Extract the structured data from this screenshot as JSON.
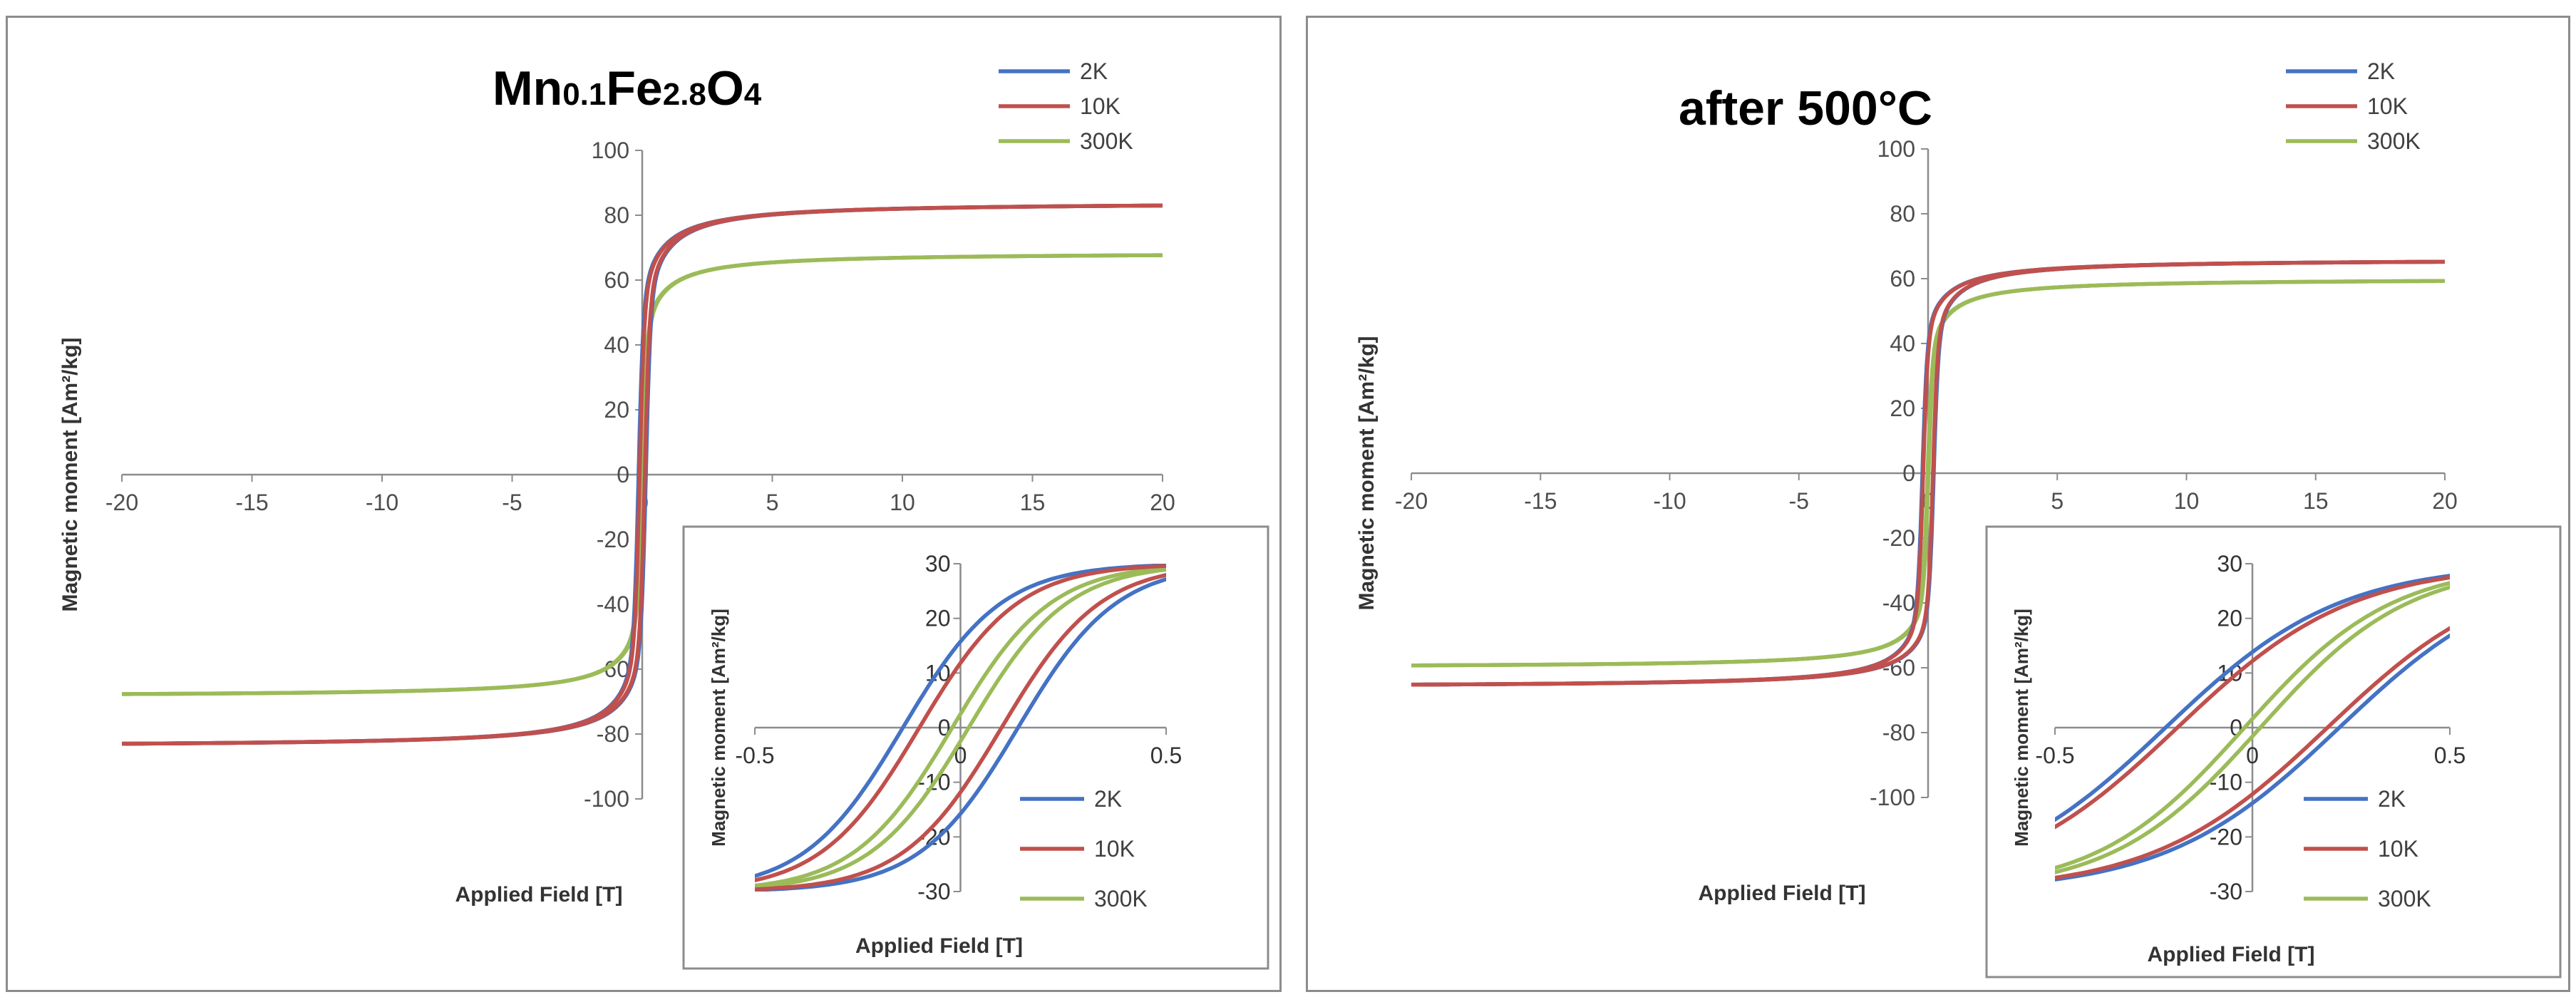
{
  "chart_data": [
    {
      "type": "line",
      "title_parts": [
        {
          "text": "Mn",
          "sub": false
        },
        {
          "text": "0.1",
          "sub": true
        },
        {
          "text": "Fe",
          "sub": false
        },
        {
          "text": "2.8",
          "sub": true
        },
        {
          "text": "O",
          "sub": false
        },
        {
          "text": "4",
          "sub": true
        }
      ],
      "xlabel": "Applied Field [T]",
      "ylabel": "Magnetic moment [Am²/kg]",
      "xlim": [
        -20,
        20
      ],
      "ylim": [
        -100,
        100
      ],
      "xticks": [
        -20,
        -15,
        -10,
        -5,
        0,
        5,
        10,
        15,
        20
      ],
      "xtick_labels": [
        "-20",
        "-15",
        "-10",
        "-5",
        "0",
        "5",
        "10",
        "15",
        "20"
      ],
      "yticks": [
        -100,
        -80,
        -60,
        -40,
        -20,
        0,
        20,
        40,
        60,
        80,
        100
      ],
      "ytick_labels": [
        "-100",
        "-80",
        "-60",
        "-40",
        "-20",
        "0",
        "20",
        "40",
        "60",
        "80",
        "100"
      ],
      "legend_position": "top-right",
      "series": [
        {
          "name": "2K",
          "color": "#4472c4",
          "Ms": 84,
          "Hc": 0.14
        },
        {
          "name": "10K",
          "color": "#c0504d",
          "Ms": 84,
          "Hc": 0.1
        },
        {
          "name": "300K",
          "color": "#9bbb59",
          "Ms": 68.5,
          "Hc": 0.02
        }
      ],
      "inset": {
        "xlabel": "Applied Field [T]",
        "ylabel": "Magnetic moment [Am²/kg]",
        "xlim": [
          -0.5,
          0.5
        ],
        "ylim": [
          -30,
          30
        ],
        "xticks": [
          -0.5,
          0,
          0.5
        ],
        "xtick_labels": [
          "-0.5",
          "0",
          "0.5"
        ],
        "yticks": [
          -30,
          -20,
          -10,
          0,
          10,
          20,
          30
        ],
        "ytick_labels": [
          "-30",
          "-20",
          "-10",
          "0",
          "10",
          "20",
          "30"
        ],
        "legend_position": "bottom-right",
        "series": [
          {
            "name": "2K",
            "color": "#4472c4",
            "Hc": 0.14,
            "slope": 125
          },
          {
            "name": "10K",
            "color": "#c0504d",
            "Hc": 0.1,
            "slope": 125
          },
          {
            "name": "300K",
            "color": "#9bbb59",
            "Hc": 0.02,
            "slope": 125
          }
        ]
      }
    },
    {
      "type": "line",
      "title_parts": [
        {
          "text": "after 500°C",
          "sub": false
        }
      ],
      "xlabel": "Applied Field [T]",
      "ylabel": "Magnetic moment [Am²/kg]",
      "xlim": [
        -20,
        20
      ],
      "ylim": [
        -100,
        100
      ],
      "xticks": [
        -20,
        -15,
        -10,
        -5,
        0,
        5,
        10,
        15,
        20
      ],
      "xtick_labels": [
        "-20",
        "-15",
        "-10",
        "-5",
        "0",
        "5",
        "10",
        "15",
        "20"
      ],
      "yticks": [
        -100,
        -80,
        -60,
        -40,
        -20,
        0,
        20,
        40,
        60,
        80,
        100
      ],
      "ytick_labels": [
        "-100",
        "-80",
        "-60",
        "-40",
        "-20",
        "0",
        "20",
        "40",
        "60",
        "80",
        "100"
      ],
      "legend_position": "top-right",
      "series": [
        {
          "name": "2K",
          "color": "#4472c4",
          "Ms": 66,
          "Hc": 0.22
        },
        {
          "name": "10K",
          "color": "#c0504d",
          "Ms": 66,
          "Hc": 0.19
        },
        {
          "name": "300K",
          "color": "#9bbb59",
          "Ms": 60,
          "Hc": 0.02
        }
      ],
      "inset": {
        "xlabel": "Applied Field [T]",
        "ylabel": "Magnetic moment [Am²/kg]",
        "xlim": [
          -0.5,
          0.5
        ],
        "ylim": [
          -30,
          30
        ],
        "xticks": [
          -0.5,
          0,
          0.5
        ],
        "xtick_labels": [
          "-0.5",
          "0",
          "0.5"
        ],
        "yticks": [
          -30,
          -20,
          -10,
          0,
          10,
          20,
          30
        ],
        "ytick_labels": [
          "-30",
          "-20",
          "-10",
          "0",
          "10",
          "20",
          "30"
        ],
        "legend_position": "bottom-right",
        "series": [
          {
            "name": "2K",
            "color": "#4472c4",
            "Hc": 0.22,
            "slope": 68
          },
          {
            "name": "10K",
            "color": "#c0504d",
            "Hc": 0.19,
            "slope": 68
          },
          {
            "name": "300K",
            "color": "#9bbb59",
            "Hc": 0.02,
            "slope": 80
          }
        ]
      }
    }
  ]
}
